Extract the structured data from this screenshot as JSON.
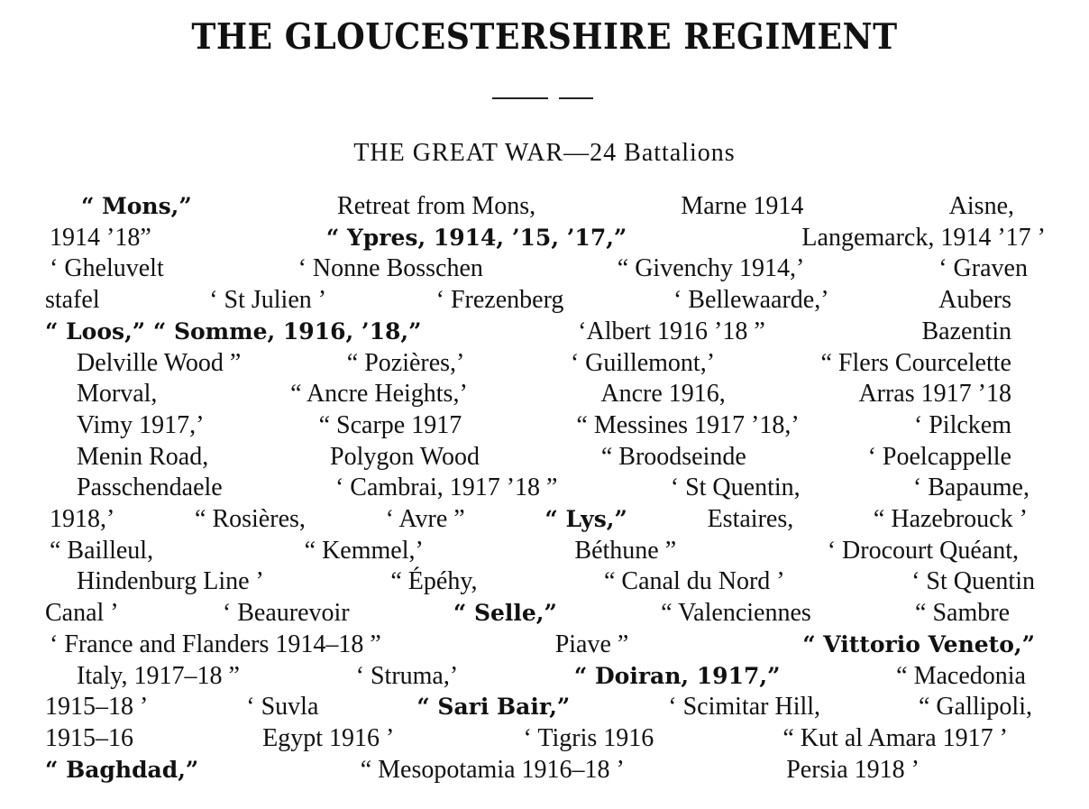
{
  "title": "THE GLOUCESTERSHIRE REGIMENT",
  "subtitle": "THE GREAT WAR—24 Battalions",
  "lines": [
    [
      {
        "t": "“ Mons,”",
        "b": true
      },
      {
        "t": "Retreat from Mons,"
      },
      {
        "t": "Marne 1914"
      },
      {
        "t": "Aisne,"
      }
    ],
    [
      {
        "t": "1914 ’18”"
      },
      {
        "t": "“ Ypres, 1914, ’15, ’17,”",
        "b": true
      },
      {
        "t": "Langemarck, 1914 ’17 ’"
      }
    ],
    [
      {
        "t": "‘ Gheluvelt"
      },
      {
        "t": "‘ Nonne Bosschen"
      },
      {
        "t": "“ Givenchy 1914,’"
      },
      {
        "t": "‘ Graven"
      }
    ],
    [
      {
        "t": "stafel"
      },
      {
        "t": "‘ St Julien ’"
      },
      {
        "t": "‘ Frezenberg"
      },
      {
        "t": "‘ Bellewaarde,’"
      },
      {
        "t": "Aubers"
      }
    ],
    [
      {
        "t": "“ Loos,” “ Somme, 1916, ’18,”",
        "b": true
      },
      {
        "t": "‘Albert 1916 ’18 ”"
      },
      {
        "t": "Bazentin"
      }
    ],
    [
      {
        "t": "Delville Wood ”"
      },
      {
        "t": "“ Pozières,’"
      },
      {
        "t": "‘ Guillemont,’"
      },
      {
        "t": "“ Flers Courcelette"
      }
    ],
    [
      {
        "t": "Morval,"
      },
      {
        "t": "“ Ancre Heights,’"
      },
      {
        "t": "Ancre 1916,"
      },
      {
        "t": "Arras 1917 ’18"
      }
    ],
    [
      {
        "t": "Vimy 1917,’"
      },
      {
        "t": "“ Scarpe 1917"
      },
      {
        "t": "“ Messines 1917 ’18,’"
      },
      {
        "t": "‘ Pilckem"
      }
    ],
    [
      {
        "t": "Menin Road,"
      },
      {
        "t": "Polygon Wood"
      },
      {
        "t": "“ Broodseinde"
      },
      {
        "t": "‘ Poelcappelle"
      }
    ],
    [
      {
        "t": "Passchendaele"
      },
      {
        "t": "‘ Cambrai, 1917 ’18 ”"
      },
      {
        "t": "‘ St Quentin,"
      },
      {
        "t": "‘ Bapaume,"
      }
    ],
    [
      {
        "t": "1918,’"
      },
      {
        "t": "“ Rosières,"
      },
      {
        "t": "‘ Avre ”"
      },
      {
        "t": "“ Lys,”",
        "b": true
      },
      {
        "t": "Estaires,"
      },
      {
        "t": "“ Hazebrouck ’"
      }
    ],
    [
      {
        "t": "“ Bailleul,"
      },
      {
        "t": "“ Kemmel,’"
      },
      {
        "t": "Béthune ”"
      },
      {
        "t": "‘ Drocourt Quéant,"
      }
    ],
    [
      {
        "t": "Hindenburg Line ’"
      },
      {
        "t": "“ Épéhy,"
      },
      {
        "t": "“ Canal du Nord ’"
      },
      {
        "t": "‘ St Quentin"
      }
    ],
    [
      {
        "t": "Canal ’"
      },
      {
        "t": "‘ Beaurevoir"
      },
      {
        "t": "“ Selle,”",
        "b": true
      },
      {
        "t": "“ Valenciennes"
      },
      {
        "t": "“ Sambre"
      }
    ],
    [
      {
        "t": "‘ France and Flanders 1914–18 ”"
      },
      {
        "t": "Piave ”"
      },
      {
        "t": "“ Vittorio Veneto,”",
        "b": true
      }
    ],
    [
      {
        "t": "Italy, 1917–18 ”"
      },
      {
        "t": "‘ Struma,’"
      },
      {
        "t": "“ Doiran, 1917,”",
        "b": true
      },
      {
        "t": "“ Macedonia"
      }
    ],
    [
      {
        "t": "1915–18 ’"
      },
      {
        "t": "‘ Suvla"
      },
      {
        "t": "“ Sari Bair,”",
        "b": true
      },
      {
        "t": "‘ Scimitar Hill,"
      },
      {
        "t": "“ Gallipoli,"
      }
    ],
    [
      {
        "t": "1915–16"
      },
      {
        "t": "Egypt 1916 ’"
      },
      {
        "t": "‘ Tigris 1916"
      },
      {
        "t": "“ Kut al Amara 1917 ’"
      }
    ],
    [
      {
        "t": "“ Baghdad,”",
        "b": true
      },
      {
        "t": "“ Mesopotamia 1916–18 ’"
      },
      {
        "t": "Persia 1918 ’"
      }
    ]
  ]
}
